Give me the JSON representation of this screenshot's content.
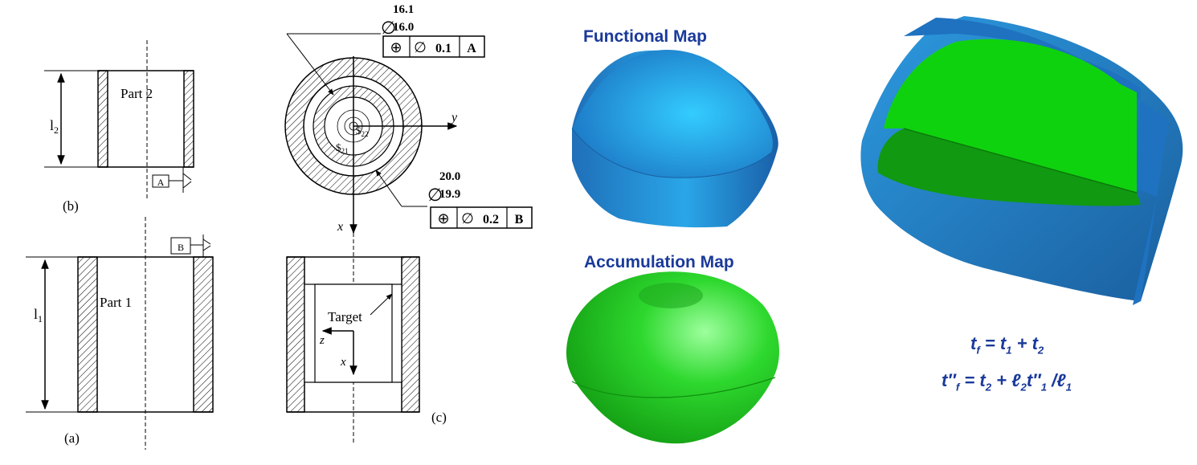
{
  "labels": {
    "part2": "Part 2",
    "part1": "Part 1",
    "l2_base": "l",
    "l2_sub": "2",
    "l1_base": "l",
    "l1_sub": "1",
    "caption_b": "(b)",
    "caption_a": "(a)",
    "caption_c": "(c)",
    "datum_a": "A",
    "datum_b": "B",
    "target": "Target",
    "axis_y": "y",
    "axis_x": "x",
    "axis_x2": "x",
    "axis_z": "z",
    "s21_base": "$",
    "s21_sub": "21",
    "s22_base": "$",
    "s22_sub": "22"
  },
  "dims": {
    "inner_diameter": {
      "symbol": "∅",
      "upper": "16.1",
      "lower": "16.0"
    },
    "outer_diameter": {
      "symbol": "∅",
      "upper": "20.0",
      "lower": "19.9"
    }
  },
  "fcf_top": {
    "sym1": "⊕",
    "sym2": "∅",
    "tol": "0.1",
    "datum": "A"
  },
  "fcf_bottom": {
    "sym1": "⊕",
    "sym2": "∅",
    "tol": "0.2",
    "datum": "B"
  },
  "maps": {
    "functional": "Functional Map",
    "accumulation": "Accumulation Map"
  },
  "equations": {
    "eq1": {
      "t": "t",
      "f": "f",
      "eq": " = ",
      "t1": "t",
      "s1": "1",
      "plus": " + ",
      "t2": "t",
      "s2": "2"
    },
    "eq2": {
      "t": "t",
      "pp": "″",
      "f": "f",
      "eq": " = ",
      "t2": "t",
      "s2": "2",
      "plus": " + ",
      "l2": "ℓ",
      "sl2": "2",
      "t1": "t",
      "pp1": "″",
      "s1": "1",
      "div": " /",
      "l1": "ℓ",
      "sl1": "1"
    }
  },
  "colors": {
    "blue_solid": "#1a7fd4",
    "green_solid": "#22cc22",
    "text_blue": "#1a3a9a"
  }
}
